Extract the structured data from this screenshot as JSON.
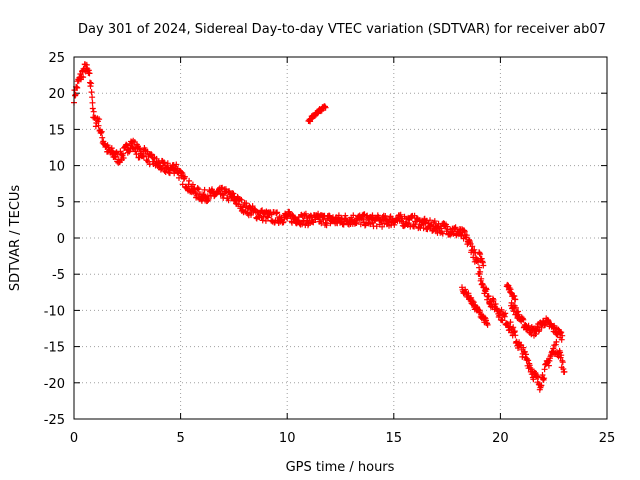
{
  "chart_data": {
    "type": "scatter",
    "title": "Day 301 of 2024, Sidereal Day-to-day VTEC variation (SDTVAR) for receiver ab07",
    "xlabel": "GPS time / hours",
    "ylabel": "SDTVAR / TECUs",
    "xlim": [
      0,
      25
    ],
    "ylim": [
      -25,
      25
    ],
    "xticks": [
      0,
      5,
      10,
      15,
      20,
      25
    ],
    "yticks": [
      -25,
      -20,
      -15,
      -10,
      -5,
      0,
      5,
      10,
      15,
      20,
      25
    ],
    "xtick_labels": [
      "0",
      "5",
      "10",
      "15",
      "20",
      "25"
    ],
    "ytick_labels": [
      "-25",
      "-20",
      "-15",
      "-10",
      "-5",
      "0",
      "5",
      "10",
      "15",
      "20",
      "25"
    ],
    "grid": true,
    "marker": "+",
    "color": "#ff0000",
    "series": [
      {
        "name": "SDTVAR",
        "segments": [
          {
            "band": 1.6,
            "points": [
              [
                0.0,
                19.5
              ],
              [
                0.2,
                21.5
              ],
              [
                0.4,
                22.8
              ],
              [
                0.55,
                23.6
              ],
              [
                0.7,
                22.5
              ],
              [
                0.85,
                20.0
              ],
              [
                0.9,
                17.0
              ],
              [
                1.0,
                16.0
              ],
              [
                1.1,
                16.5
              ],
              [
                1.2,
                15.5
              ],
              [
                1.3,
                14.0
              ],
              [
                1.45,
                13.0
              ],
              [
                1.6,
                12.0
              ],
              [
                1.9,
                11.5
              ],
              [
                2.1,
                11.0
              ],
              [
                2.3,
                11.5
              ],
              [
                2.5,
                12.5
              ],
              [
                2.7,
                13.0
              ],
              [
                2.9,
                12.5
              ],
              [
                3.1,
                11.5
              ],
              [
                3.3,
                12.0
              ],
              [
                3.5,
                11.0
              ],
              [
                3.8,
                10.5
              ],
              [
                4.0,
                10.0
              ],
              [
                4.5,
                9.5
              ],
              [
                4.8,
                9.8
              ],
              [
                5.0,
                8.5
              ],
              [
                5.3,
                7.5
              ],
              [
                5.6,
                6.5
              ],
              [
                6.0,
                5.8
              ],
              [
                6.5,
                6.0
              ],
              [
                7.0,
                6.2
              ],
              [
                7.5,
                5.5
              ],
              [
                8.0,
                4.2
              ],
              [
                8.5,
                3.5
              ],
              [
                9.0,
                3.0
              ],
              [
                9.5,
                2.8
              ],
              [
                10.0,
                2.9
              ],
              [
                10.5,
                2.7
              ],
              [
                11.0,
                2.5
              ],
              [
                11.5,
                2.6
              ],
              [
                12.0,
                2.5
              ],
              [
                12.5,
                2.4
              ],
              [
                13.0,
                2.6
              ],
              [
                13.5,
                2.5
              ],
              [
                14.0,
                2.4
              ],
              [
                14.5,
                2.3
              ],
              [
                15.0,
                2.5
              ],
              [
                15.5,
                2.4
              ],
              [
                16.0,
                2.3
              ],
              [
                16.5,
                1.8
              ],
              [
                17.0,
                1.5
              ],
              [
                17.5,
                1.3
              ],
              [
                18.0,
                0.8
              ],
              [
                18.3,
                0.3
              ],
              [
                18.6,
                -1.0
              ],
              [
                18.8,
                -2.5
              ],
              [
                19.0,
                -4.5
              ],
              [
                19.2,
                -6.5
              ],
              [
                19.4,
                -8.0
              ],
              [
                19.6,
                -9.0
              ],
              [
                19.8,
                -9.5
              ],
              [
                20.0,
                -10.5
              ],
              [
                20.2,
                -11.0
              ],
              [
                20.4,
                -12.0
              ],
              [
                20.6,
                -13.0
              ],
              [
                20.8,
                -14.5
              ],
              [
                21.0,
                -15.5
              ],
              [
                21.3,
                -17.0
              ],
              [
                21.5,
                -18.5
              ],
              [
                21.7,
                -19.5
              ],
              [
                21.85,
                -20.2
              ],
              [
                22.0,
                -19.0
              ],
              [
                22.2,
                -17.5
              ],
              [
                22.4,
                -16.0
              ],
              [
                22.6,
                -15.0
              ],
              [
                22.8,
                -16.0
              ],
              [
                22.9,
                -17.5
              ],
              [
                23.0,
                -18.5
              ]
            ]
          },
          {
            "band": 1.2,
            "points": [
              [
                20.5,
                -9.0
              ],
              [
                20.8,
                -10.5
              ],
              [
                21.0,
                -11.5
              ],
              [
                21.3,
                -12.5
              ],
              [
                21.6,
                -13.0
              ],
              [
                21.9,
                -12.0
              ],
              [
                22.1,
                -11.5
              ],
              [
                22.3,
                -12.0
              ],
              [
                22.6,
                -12.8
              ],
              [
                22.9,
                -13.5
              ]
            ]
          },
          {
            "band": 0.8,
            "points": [
              [
                18.2,
                -7.0
              ],
              [
                18.5,
                -8.0
              ],
              [
                18.8,
                -9.5
              ],
              [
                19.0,
                -10.2
              ],
              [
                19.2,
                -11.0
              ],
              [
                19.4,
                -12.0
              ]
            ]
          },
          {
            "band": 0.8,
            "points": [
              [
                19.0,
                -2.0
              ],
              [
                19.1,
                -3.0
              ],
              [
                19.2,
                -3.8
              ]
            ]
          },
          {
            "band": 0.5,
            "points": [
              [
                11.0,
                16.0
              ],
              [
                11.2,
                16.8
              ],
              [
                11.4,
                17.4
              ],
              [
                11.6,
                17.8
              ],
              [
                11.8,
                18.0
              ]
            ]
          },
          {
            "band": 0.6,
            "points": [
              [
                20.3,
                -6.5
              ],
              [
                20.5,
                -7.5
              ],
              [
                20.7,
                -8.5
              ]
            ]
          }
        ]
      }
    ]
  }
}
